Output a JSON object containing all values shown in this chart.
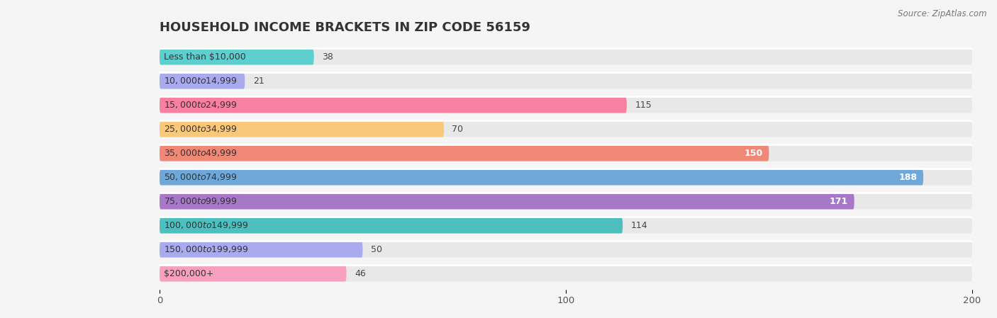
{
  "title": "HOUSEHOLD INCOME BRACKETS IN ZIP CODE 56159",
  "source": "Source: ZipAtlas.com",
  "categories": [
    "Less than $10,000",
    "$10,000 to $14,999",
    "$15,000 to $24,999",
    "$25,000 to $34,999",
    "$35,000 to $49,999",
    "$50,000 to $74,999",
    "$75,000 to $99,999",
    "$100,000 to $149,999",
    "$150,000 to $199,999",
    "$200,000+"
  ],
  "values": [
    38,
    21,
    115,
    70,
    150,
    188,
    171,
    114,
    50,
    46
  ],
  "bar_colors": [
    "#5ecece",
    "#aaaaee",
    "#f880a0",
    "#f9c87a",
    "#f08878",
    "#6fa8d8",
    "#a878c8",
    "#4dbfbf",
    "#aaaaee",
    "#f8a0c0"
  ],
  "background_color": "#f5f5f5",
  "bar_bg_color": "#e8e8e8",
  "xlim": [
    0,
    200
  ],
  "xticks": [
    0,
    100,
    200
  ],
  "title_fontsize": 13,
  "label_fontsize": 9,
  "value_fontsize": 9
}
